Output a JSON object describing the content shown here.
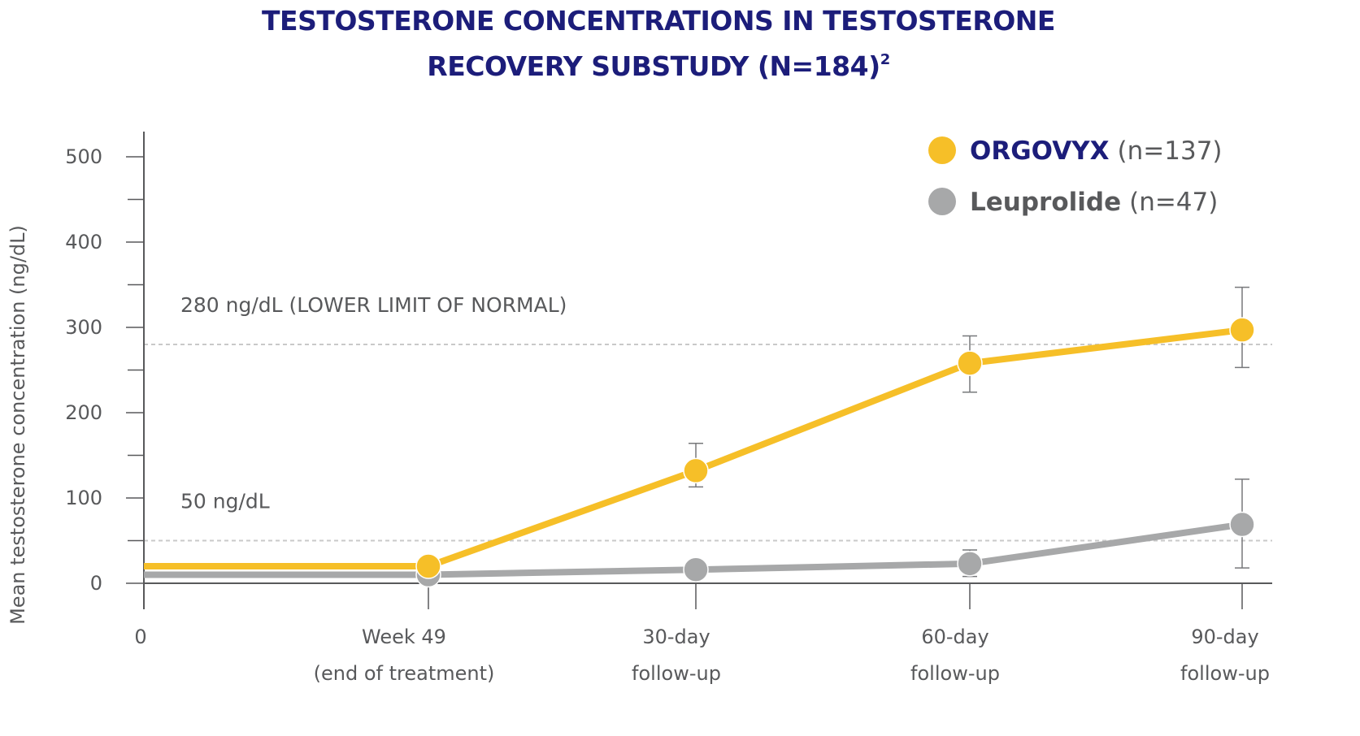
{
  "title": {
    "line1": "TESTOSTERONE CONCENTRATIONS IN TESTOSTERONE",
    "line2": "RECOVERY SUBSTUDY (N=184)",
    "superscript": "2"
  },
  "colors": {
    "title": "#1c1d7a",
    "orgovyx": "#f6bf28",
    "leuprolide": "#a7a8a9",
    "axis": "#58595b",
    "reference_line": "#c9c9c9"
  },
  "chart_data": {
    "type": "line",
    "ylabel": "Mean testosterone concentration (ng/dL)",
    "xlabel": "",
    "ylim": [
      0,
      500
    ],
    "y_ticks": [
      "0",
      "100",
      "200",
      "300",
      "400",
      "500"
    ],
    "x": [
      "0",
      "Week 49",
      "30-day",
      "60-day",
      "90-day"
    ],
    "x_tick_labels": [
      [
        "0"
      ],
      [
        "Week 49",
        "(end of treatment)"
      ],
      [
        "30-day",
        "follow-up"
      ],
      [
        "60-day",
        "follow-up"
      ],
      [
        "90-day",
        "follow-up"
      ]
    ],
    "series": [
      {
        "name": "ORGOVYX",
        "n_label": "(n=137)",
        "color": "#f6bf28",
        "values": [
          20,
          20,
          132,
          258,
          297
        ],
        "markers": [
          false,
          true,
          true,
          true,
          true
        ],
        "error_low": [
          null,
          null,
          113,
          224,
          253
        ],
        "error_high": [
          null,
          null,
          164,
          290,
          347
        ]
      },
      {
        "name": "Leuprolide",
        "n_label": "(n=47)",
        "color": "#a7a8a9",
        "values": [
          10,
          10,
          16,
          23,
          69
        ],
        "markers": [
          false,
          true,
          true,
          true,
          true
        ],
        "error_low": [
          null,
          null,
          null,
          8,
          18
        ],
        "error_high": [
          null,
          null,
          null,
          39,
          122
        ]
      }
    ],
    "reference_lines": [
      {
        "value": 280,
        "label": "280 ng/dL (LOWER LIMIT OF NORMAL)"
      },
      {
        "value": 50,
        "label": "50 ng/dL"
      }
    ],
    "legend_position": "top-right",
    "grid": false
  }
}
